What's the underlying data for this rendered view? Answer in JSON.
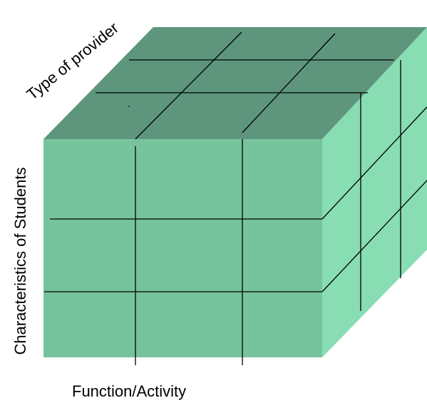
{
  "diagram": {
    "type": "3d-cube-matrix",
    "axes": {
      "x_label": "Function/Activity",
      "y_label": "Characteristics of Students",
      "z_label": "Type of  provider"
    },
    "grid_divisions": {
      "x": 3,
      "y": 3,
      "z": 3
    },
    "colors": {
      "front_face": "#77c39d",
      "top_face": "#5e967d",
      "right_face": "#88ddb3",
      "grid_lines": "#000000",
      "background": "#ffffff"
    }
  }
}
